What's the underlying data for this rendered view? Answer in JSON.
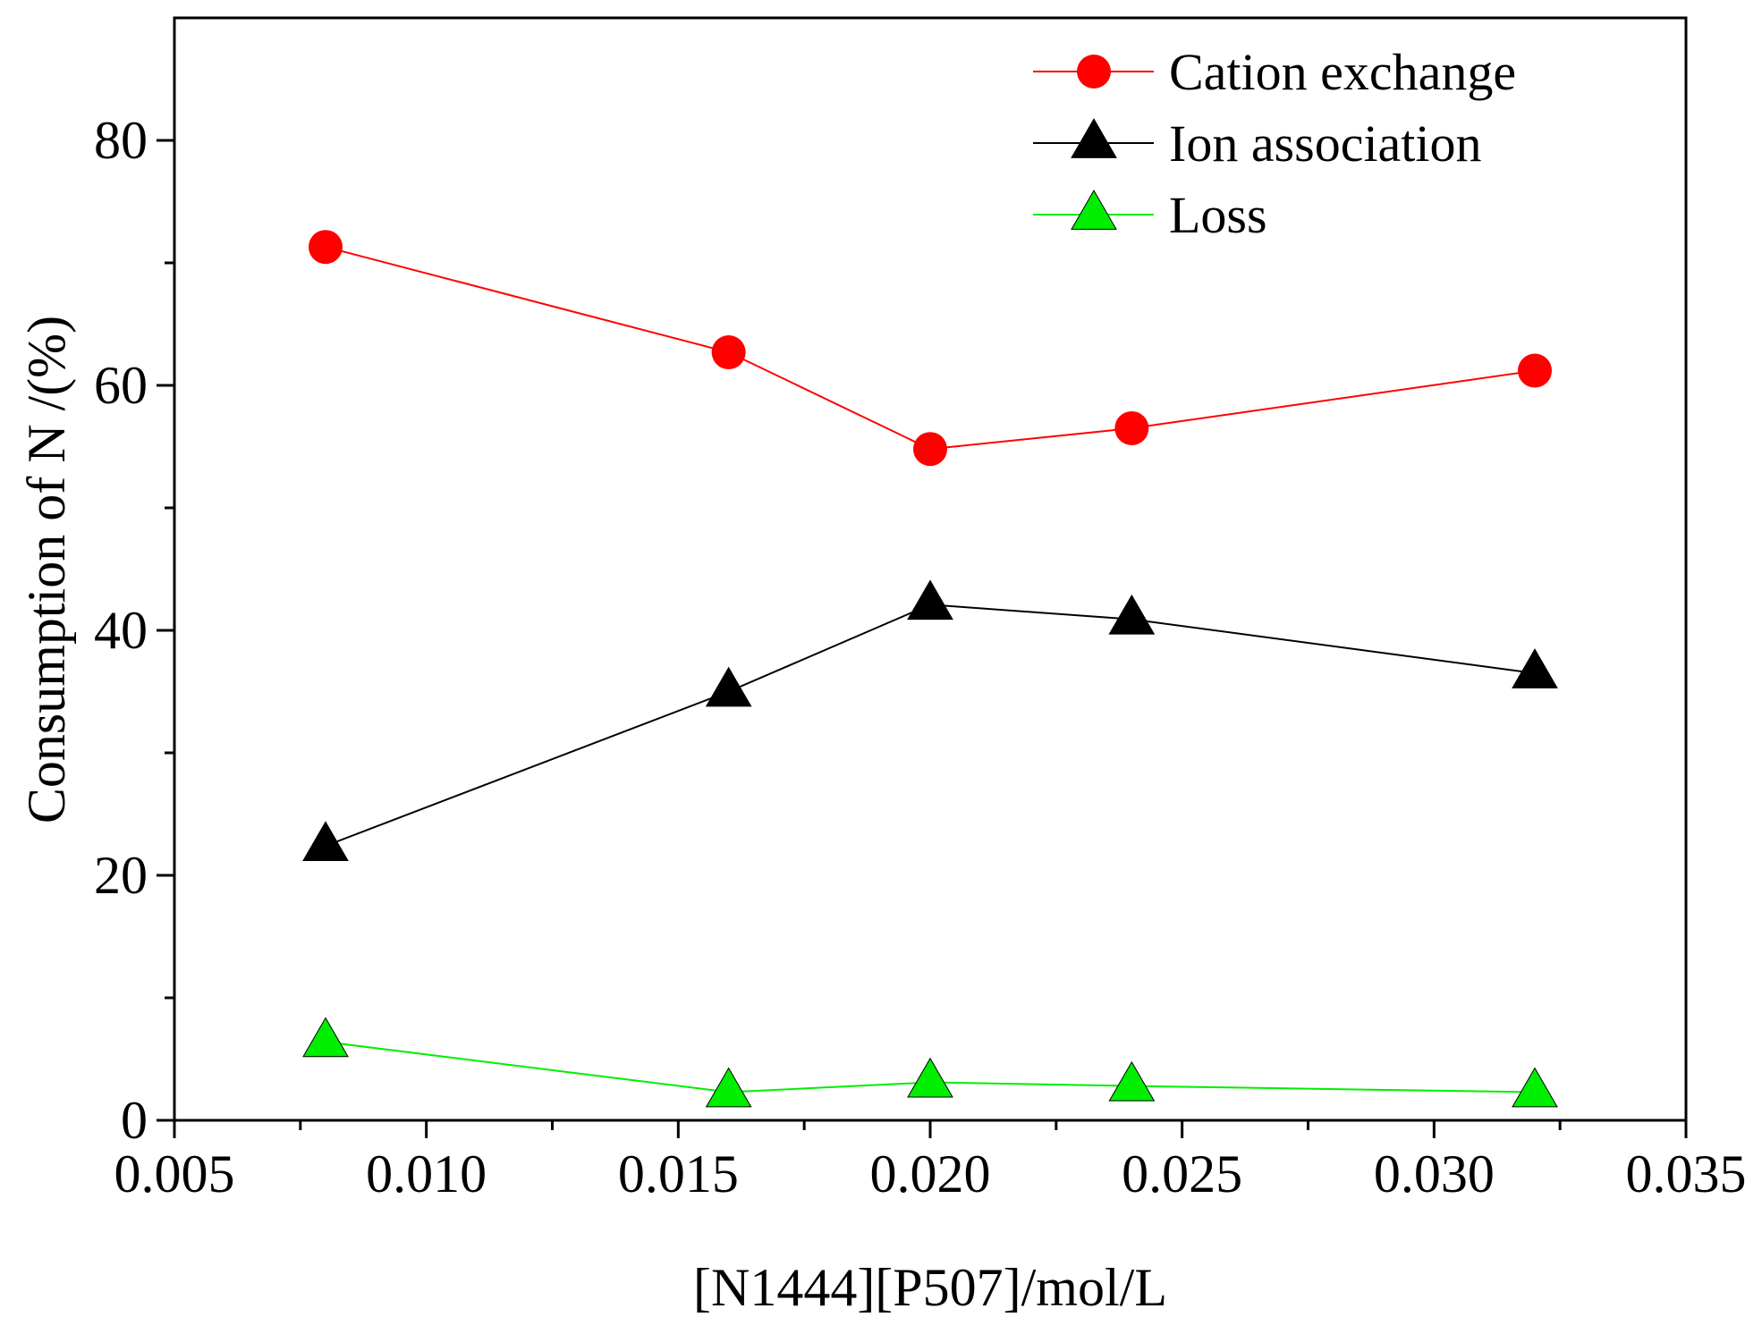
{
  "chart_data": {
    "type": "line",
    "title": "",
    "xlabel": "[N1444][P507]/mol/L",
    "ylabel": "Consumption of N /(%)",
    "xlim": [
      0.005,
      0.035
    ],
    "ylim": [
      0,
      90
    ],
    "x_major_ticks": [
      0.005,
      0.01,
      0.015,
      0.02,
      0.025,
      0.03,
      0.035
    ],
    "x_tick_labels": [
      "0.005",
      "0.010",
      "0.015",
      "0.020",
      "0.025",
      "0.030",
      "0.035"
    ],
    "x_minor_ticks": [
      0.0075,
      0.0125,
      0.0175,
      0.0225,
      0.0275,
      0.0325
    ],
    "y_major_ticks": [
      0,
      20,
      40,
      60,
      80
    ],
    "y_tick_labels": [
      "0",
      "20",
      "40",
      "60",
      "80"
    ],
    "y_minor_ticks": [
      10,
      30,
      50,
      70
    ],
    "grid": false,
    "legend_position": "top-right",
    "x": [
      0.008,
      0.016,
      0.02,
      0.024,
      0.032
    ],
    "series": [
      {
        "name": "Cation exchange",
        "values": [
          71.3,
          62.7,
          54.8,
          56.5,
          61.2
        ],
        "color": "#ff0000",
        "marker": "circle"
      },
      {
        "name": "Ion association",
        "values": [
          22.4,
          35.0,
          42.1,
          40.9,
          36.5
        ],
        "color": "#000000",
        "marker": "triangle"
      },
      {
        "name": "Loss",
        "values": [
          6.4,
          2.3,
          3.1,
          2.8,
          2.3
        ],
        "color": "#00ee00",
        "marker": "triangle"
      }
    ]
  }
}
